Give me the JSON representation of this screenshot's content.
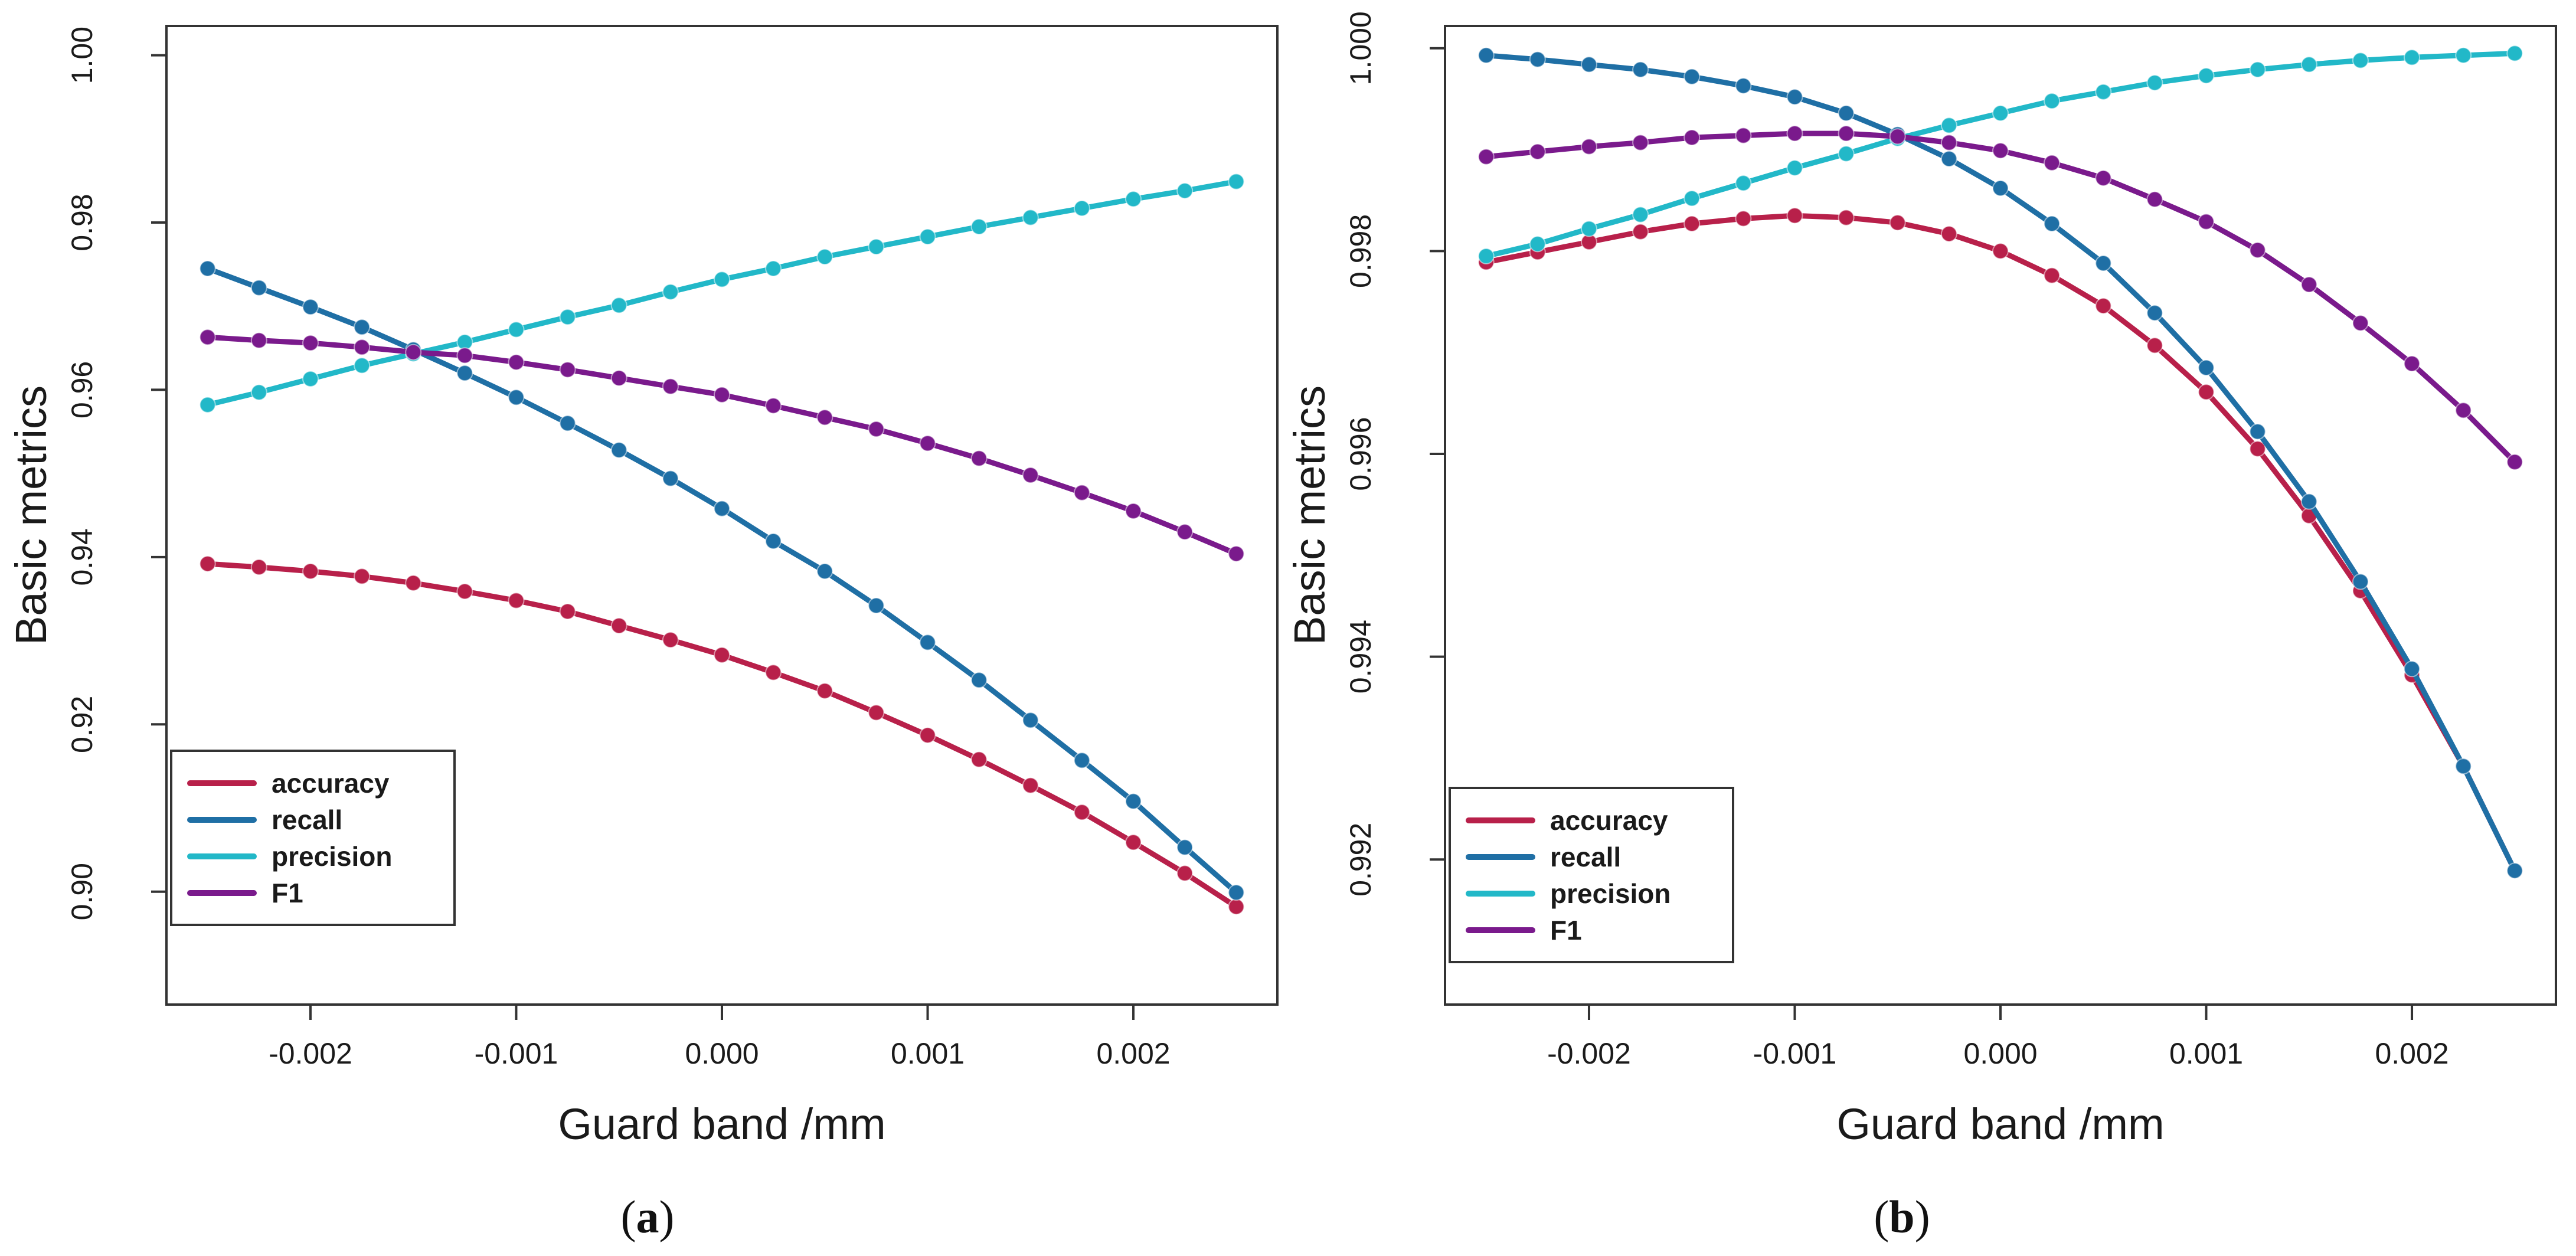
{
  "panels": [
    {
      "id": "a",
      "caption_open": "(",
      "caption_letter": "a",
      "caption_close": ")"
    },
    {
      "id": "b",
      "caption_open": "(",
      "caption_letter": "b",
      "caption_close": ")"
    }
  ],
  "colors": {
    "accuracy": "#b8204a",
    "recall": "#1f6fa5",
    "precision": "#22b8c8",
    "F1": "#7a1a8c"
  },
  "chart_data": [
    {
      "type": "line",
      "panel": "a",
      "title": "",
      "xlabel": "Guard band /mm",
      "ylabel": "Basic metrics",
      "xlim": [
        -0.0027,
        0.0027
      ],
      "ylim": [
        0.8865,
        1.0035
      ],
      "xticks": [
        -0.002,
        -0.001,
        0.0,
        0.001,
        0.002
      ],
      "xtick_labels": [
        "-0.002",
        "-0.001",
        "0.000",
        "0.001",
        "0.002"
      ],
      "yticks": [
        0.9,
        0.92,
        0.94,
        0.96,
        0.98,
        1.0
      ],
      "ytick_labels": [
        "0.90",
        "0.92",
        "0.94",
        "0.96",
        "0.98",
        "1.00"
      ],
      "legend_position": "bottom-left",
      "x": [
        -0.0025,
        -0.00225,
        -0.002,
        -0.00175,
        -0.0015,
        -0.00125,
        -0.001,
        -0.00075,
        -0.0005,
        -0.00025,
        0.0,
        0.00025,
        0.0005,
        0.00075,
        0.001,
        0.00125,
        0.0015,
        0.00175,
        0.002,
        0.00225,
        0.0025
      ],
      "series": [
        {
          "name": "accuracy",
          "color_key": "accuracy",
          "values": [
            0.9392,
            0.9388,
            0.9383,
            0.9377,
            0.9369,
            0.9359,
            0.9348,
            0.9335,
            0.9318,
            0.9301,
            0.9283,
            0.9262,
            0.924,
            0.9214,
            0.9187,
            0.9158,
            0.9127,
            0.9095,
            0.9059,
            0.9022,
            0.8982
          ]
        },
        {
          "name": "recall",
          "color_key": "recall",
          "values": [
            0.9745,
            0.9722,
            0.9699,
            0.9675,
            0.9648,
            0.962,
            0.9591,
            0.956,
            0.9528,
            0.9494,
            0.9458,
            0.9419,
            0.9383,
            0.9342,
            0.9298,
            0.9253,
            0.9205,
            0.9157,
            0.9108,
            0.9053,
            0.8999
          ]
        },
        {
          "name": "precision",
          "color_key": "precision",
          "values": [
            0.9582,
            0.9597,
            0.9613,
            0.9629,
            0.9643,
            0.9657,
            0.9672,
            0.9687,
            0.9701,
            0.9717,
            0.9732,
            0.9745,
            0.9759,
            0.9771,
            0.9783,
            0.9795,
            0.9806,
            0.9817,
            0.9828,
            0.9838,
            0.9849
          ]
        },
        {
          "name": "F1",
          "color_key": "F1",
          "values": [
            0.9663,
            0.9659,
            0.9656,
            0.9651,
            0.9645,
            0.9641,
            0.9633,
            0.9624,
            0.9614,
            0.9604,
            0.9594,
            0.9581,
            0.9567,
            0.9553,
            0.9536,
            0.9518,
            0.9498,
            0.9477,
            0.9455,
            0.943,
            0.9404
          ]
        }
      ]
    },
    {
      "type": "line",
      "panel": "b",
      "title": "",
      "xlabel": "Guard band /mm",
      "ylabel": "Basic metrics",
      "xlim": [
        -0.0027,
        0.0027
      ],
      "ylim": [
        0.99057,
        1.00022
      ],
      "xticks": [
        -0.002,
        -0.001,
        0.0,
        0.001,
        0.002
      ],
      "xtick_labels": [
        "-0.002",
        "-0.001",
        "0.000",
        "0.001",
        "0.002"
      ],
      "yticks": [
        0.992,
        0.994,
        0.996,
        0.998,
        1.0
      ],
      "ytick_labels": [
        "0.992",
        "0.994",
        "0.996",
        "0.998",
        "1.000"
      ],
      "legend_position": "bottom-left",
      "x": [
        -0.0025,
        -0.00225,
        -0.002,
        -0.00175,
        -0.0015,
        -0.00125,
        -0.001,
        -0.00075,
        -0.0005,
        -0.00025,
        0.0,
        0.00025,
        0.0005,
        0.00075,
        0.001,
        0.00125,
        0.0015,
        0.00175,
        0.002,
        0.00225,
        0.0025
      ],
      "series": [
        {
          "name": "accuracy",
          "color_key": "accuracy",
          "values": [
            0.99789,
            0.99799,
            0.99809,
            0.99819,
            0.99827,
            0.99832,
            0.99835,
            0.99833,
            0.99828,
            0.99817,
            0.998,
            0.99776,
            0.99746,
            0.99707,
            0.99661,
            0.99605,
            0.99539,
            0.99465,
            0.99382,
            0.99292,
            0.99189
          ]
        },
        {
          "name": "recall",
          "color_key": "recall",
          "values": [
            0.99993,
            0.99989,
            0.99984,
            0.99979,
            0.99972,
            0.99963,
            0.99952,
            0.99936,
            0.99915,
            0.99891,
            0.99862,
            0.99827,
            0.99788,
            0.99739,
            0.99685,
            0.99622,
            0.99553,
            0.99474,
            0.99388,
            0.99292,
            0.99189
          ]
        },
        {
          "name": "precision",
          "color_key": "precision",
          "values": [
            0.99795,
            0.99807,
            0.99822,
            0.99836,
            0.99852,
            0.99867,
            0.99882,
            0.99896,
            0.99911,
            0.99924,
            0.99936,
            0.99948,
            0.99957,
            0.99966,
            0.99973,
            0.99979,
            0.99984,
            0.99988,
            0.99991,
            0.99993,
            0.99995
          ]
        },
        {
          "name": "F1",
          "color_key": "F1",
          "values": [
            0.99893,
            0.99898,
            0.99903,
            0.99907,
            0.99912,
            0.99914,
            0.99916,
            0.99916,
            0.99913,
            0.99907,
            0.99899,
            0.99887,
            0.99872,
            0.99851,
            0.99829,
            0.99801,
            0.99767,
            0.99729,
            0.99689,
            0.99643,
            0.99592
          ]
        }
      ]
    }
  ]
}
